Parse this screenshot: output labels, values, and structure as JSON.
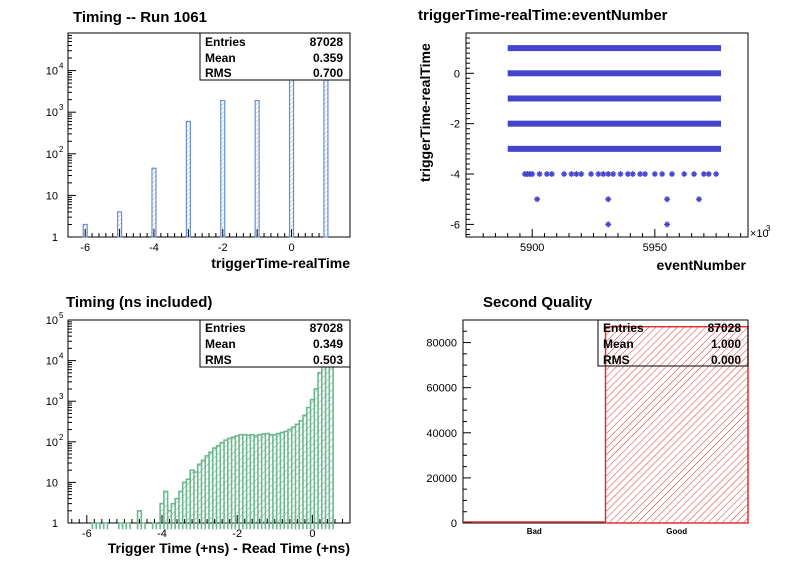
{
  "chart_data": [
    {
      "type": "bar",
      "title": "Timing -- Run 1061",
      "xlabel": "triggerTime-realTime",
      "ylabel": "",
      "log_y": true,
      "xlim": [
        -6.5,
        1.7
      ],
      "ylim": [
        1,
        80000
      ],
      "x_ticks": [
        "-6",
        "-4",
        "-2",
        "0"
      ],
      "y_ticks": [
        "1",
        "10",
        "10",
        "10",
        "10"
      ],
      "y_exponents": [
        "",
        "",
        "2",
        "3",
        "4"
      ],
      "bar_color": "#6a8fd0",
      "x": [
        -6,
        -5,
        -4,
        -3,
        -2,
        -1,
        0,
        1
      ],
      "values": [
        2,
        4,
        45,
        600,
        1900,
        1900,
        40000,
        42000
      ],
      "stats": {
        "rows": [
          {
            "label": "Entries",
            "value": "87028"
          },
          {
            "label": "Mean",
            "value": "0.359"
          },
          {
            "label": "RMS",
            "value": "0.700"
          }
        ]
      }
    },
    {
      "type": "scatter",
      "title": "triggerTime-realTime:eventNumber",
      "xlabel": "eventNumber",
      "ylabel": "triggerTime-realTime",
      "x_multiplier": "×10",
      "x_multiplier_exp": "3",
      "xlim": [
        5873,
        5988
      ],
      "ylim": [
        -6.5,
        1.6
      ],
      "x_ticks": [
        "5900",
        "5950"
      ],
      "y_ticks": [
        "-6",
        "-4",
        "-2",
        "0"
      ],
      "marker_color": "#4444cc",
      "dense_bands": [
        {
          "y": 1,
          "x_range": [
            5890,
            5977
          ]
        },
        {
          "y": 0,
          "x_range": [
            5890,
            5977
          ]
        },
        {
          "y": -1,
          "x_range": [
            5890,
            5977
          ]
        },
        {
          "y": -2,
          "x_range": [
            5890,
            5977
          ]
        },
        {
          "y": -3,
          "x_range": [
            5890,
            5977
          ]
        }
      ],
      "points": [
        [
          5897,
          -4
        ],
        [
          5898,
          -4
        ],
        [
          5899,
          -4
        ],
        [
          5900,
          -4
        ],
        [
          5903,
          -4
        ],
        [
          5906,
          -4
        ],
        [
          5908,
          -4
        ],
        [
          5913,
          -4
        ],
        [
          5916,
          -4
        ],
        [
          5918,
          -4
        ],
        [
          5920,
          -4
        ],
        [
          5924,
          -4
        ],
        [
          5927,
          -4
        ],
        [
          5929,
          -4
        ],
        [
          5931,
          -4
        ],
        [
          5933,
          -4
        ],
        [
          5936,
          -4
        ],
        [
          5939,
          -4
        ],
        [
          5941,
          -4
        ],
        [
          5944,
          -4
        ],
        [
          5946,
          -4
        ],
        [
          5950,
          -4
        ],
        [
          5953,
          -4
        ],
        [
          5957,
          -4
        ],
        [
          5962,
          -4
        ],
        [
          5966,
          -4
        ],
        [
          5970,
          -4
        ],
        [
          5972,
          -4
        ],
        [
          5975,
          -4
        ],
        [
          5902,
          -5
        ],
        [
          5931,
          -5
        ],
        [
          5955,
          -5
        ],
        [
          5968,
          -5
        ],
        [
          5931,
          -6
        ],
        [
          5955,
          -6
        ]
      ]
    },
    {
      "type": "area",
      "title": "Timing (ns included)",
      "xlabel": "Trigger Time (+ns) - Read Time (+ns)",
      "ylabel": "",
      "log_y": true,
      "xlim": [
        -6.5,
        1.0
      ],
      "ylim": [
        1,
        100000
      ],
      "x_ticks": [
        "-6",
        "-4",
        "-2",
        "0"
      ],
      "y_ticks": [
        "1",
        "10",
        "10",
        "10",
        "10",
        "10"
      ],
      "y_exponents": [
        "",
        "",
        "2",
        "3",
        "4",
        "5"
      ],
      "line_color": "#6bb88f",
      "bin_width": 0.1,
      "x": [
        -5.8,
        -5.7,
        -5.5,
        -5.1,
        -5.0,
        -4.9,
        -4.6,
        -4.5,
        -4.2,
        -4.0,
        -3.9,
        -3.8,
        -3.7,
        -3.6,
        -3.5,
        -3.4,
        -3.3,
        -3.2,
        -3.1,
        -3.0,
        -2.9,
        -2.8,
        -2.7,
        -2.6,
        -2.5,
        -2.4,
        -2.3,
        -2.2,
        -2.1,
        -2.0,
        -1.9,
        -1.8,
        -1.7,
        -1.6,
        -1.5,
        -1.4,
        -1.3,
        -1.2,
        -1.1,
        -1.0,
        -0.9,
        -0.8,
        -0.7,
        -0.6,
        -0.5,
        -0.4,
        -0.3,
        -0.2,
        -0.1,
        0.0,
        0.1,
        0.2,
        0.3,
        0.4,
        0.5
      ],
      "values": [
        1,
        1,
        1,
        1,
        1,
        1,
        2,
        1,
        1,
        3,
        6,
        2,
        3,
        4,
        6,
        10,
        12,
        20,
        18,
        28,
        35,
        45,
        55,
        70,
        80,
        95,
        110,
        120,
        130,
        140,
        150,
        150,
        145,
        150,
        140,
        150,
        155,
        160,
        150,
        150,
        160,
        170,
        180,
        200,
        230,
        270,
        330,
        450,
        700,
        1100,
        2000,
        5000,
        20000,
        60000,
        8000
      ],
      "stats": {
        "rows": [
          {
            "label": "Entries",
            "value": "87028"
          },
          {
            "label": "Mean",
            "value": "0.349"
          },
          {
            "label": "RMS",
            "value": "0.503"
          }
        ]
      }
    },
    {
      "type": "bar",
      "title": "Second Quality",
      "xlabel": "",
      "ylabel": "",
      "categories": [
        "Bad",
        "Good"
      ],
      "values": [
        0,
        87028
      ],
      "ylim": [
        0,
        90000
      ],
      "y_ticks": [
        "0",
        "20000",
        "40000",
        "60000",
        "80000"
      ],
      "y_tick_values": [
        0,
        20000,
        40000,
        60000,
        80000
      ],
      "bar_color": "#dd3333",
      "stats": {
        "rows": [
          {
            "label": "Entries",
            "value": "87028"
          },
          {
            "label": "Mean",
            "value": "1.000"
          },
          {
            "label": "RMS",
            "value": "0.000"
          }
        ]
      }
    }
  ]
}
